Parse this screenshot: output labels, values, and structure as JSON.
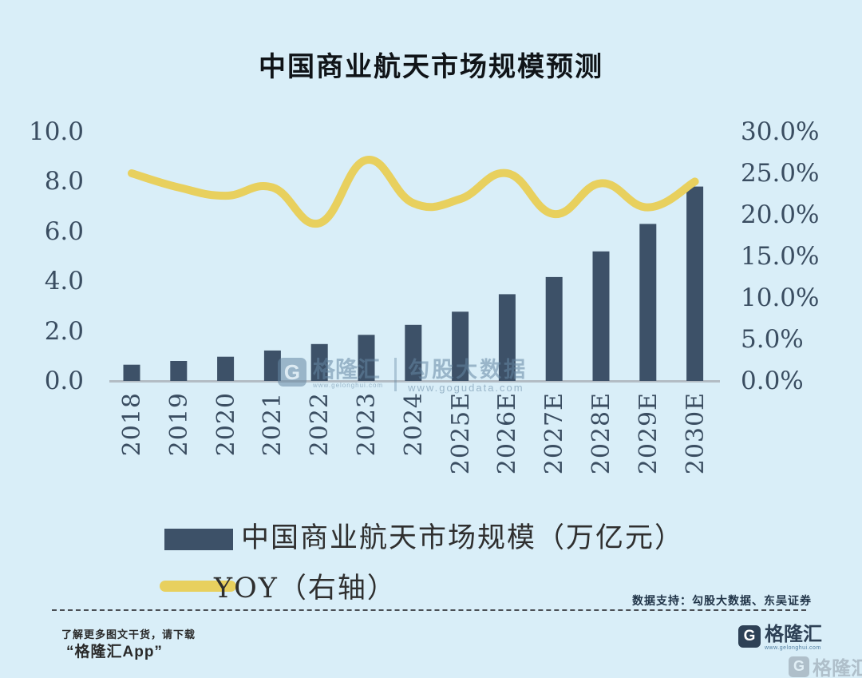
{
  "title": "中国商业航天市场规模预测",
  "chart_data": {
    "type": "bar",
    "categories": [
      "2018",
      "2019",
      "2020",
      "2021",
      "2022",
      "2023",
      "2024",
      "2025E",
      "2026E",
      "2027E",
      "2028E",
      "2029E",
      "2030E"
    ],
    "series": [
      {
        "name": "中国商业航天市场规模（万亿元）",
        "type": "bar",
        "axis": "left",
        "values": [
          0.65,
          0.8,
          0.97,
          1.22,
          1.48,
          1.85,
          2.25,
          2.78,
          3.48,
          4.17,
          5.2,
          6.3,
          7.8
        ]
      },
      {
        "name": "YOY（右轴）",
        "type": "line",
        "axis": "right",
        "values": [
          25.0,
          23.3,
          22.3,
          23.3,
          19.0,
          26.6,
          21.4,
          21.9,
          25.0,
          20.1,
          23.8,
          20.9,
          24.0
        ]
      }
    ],
    "left_axis": {
      "min": 0,
      "max": 10,
      "ticks": [
        "0.0",
        "2.0",
        "4.0",
        "6.0",
        "8.0",
        "10.0"
      ]
    },
    "right_axis": {
      "min": 0,
      "max": 30,
      "ticks": [
        "0.0%",
        "5.0%",
        "10.0%",
        "15.0%",
        "20.0%",
        "25.0%",
        "30.0%"
      ]
    },
    "grid": false,
    "legend_position": "bottom-left",
    "colors": {
      "bar": "#3d5168",
      "line": "#e8d05e",
      "background": "#d9eef8",
      "axis_line": "#b3bcc4"
    }
  },
  "watermark": {
    "logo_letter": "G",
    "brand": "格隆汇",
    "brand_url": "www.gelonghui.com",
    "partner": "勾股大数据",
    "partner_url": "www.gogudata.com"
  },
  "footer": {
    "data_support": "数据支持：勾股大数据、东吴证券",
    "promo_line1": "了解更多图文干货，请下载",
    "promo_line2": "“格隆汇App”",
    "brand": "格隆汇",
    "brand_url": "www.gelonghui.com"
  }
}
